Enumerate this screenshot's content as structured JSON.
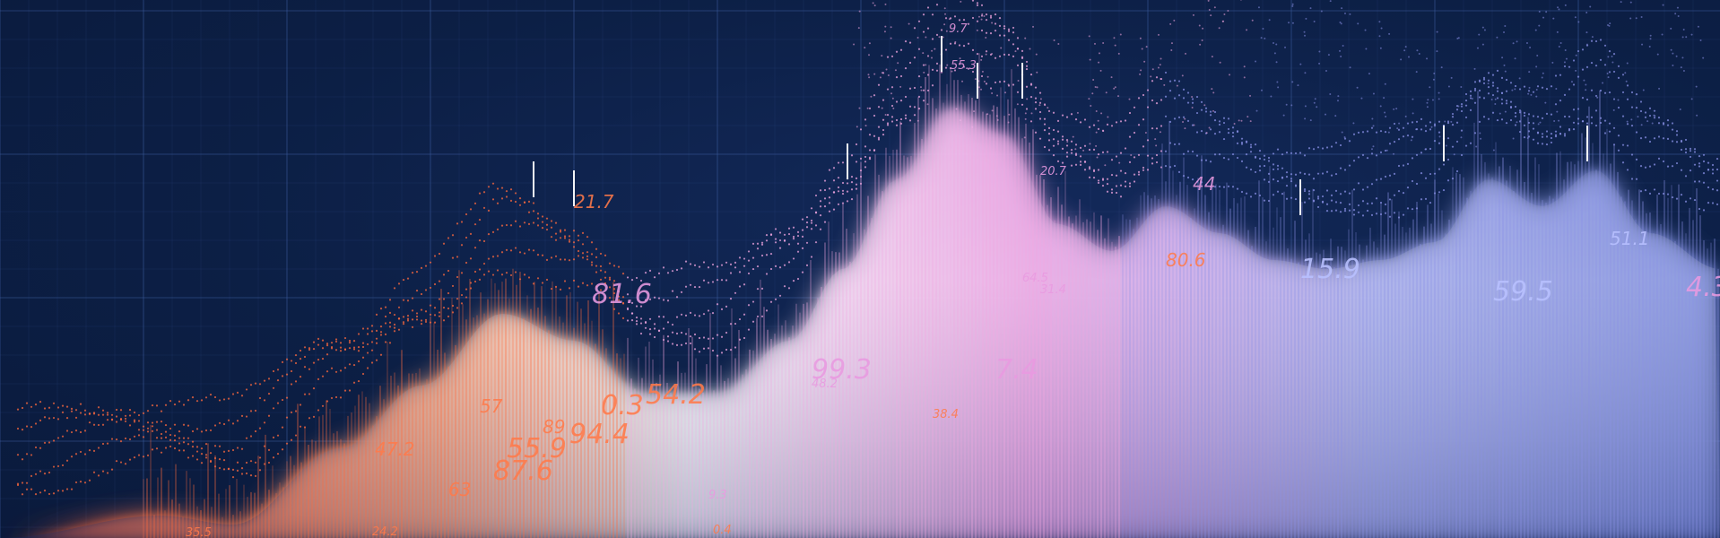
{
  "scene": {
    "colors": {
      "background": "#0c1f45",
      "grid": "#3a5a9a",
      "warm": "#ff6a3d",
      "mid": "#f2a6e0",
      "cool": "#8a90e6",
      "highlight": "#ffffff"
    },
    "labels": [
      {
        "text": "81.6",
        "size": "large",
        "tone": "mid"
      },
      {
        "text": "0.3",
        "size": "large",
        "tone": "warm"
      },
      {
        "text": "54.2",
        "size": "large",
        "tone": "warm"
      },
      {
        "text": "94.4",
        "size": "large",
        "tone": "warm"
      },
      {
        "text": "55.9",
        "size": "large",
        "tone": "warm"
      },
      {
        "text": "87.6",
        "size": "large",
        "tone": "warm"
      },
      {
        "text": "89",
        "size": "medium",
        "tone": "warm"
      },
      {
        "text": "63",
        "size": "medium",
        "tone": "warm"
      },
      {
        "text": "47.2",
        "size": "medium",
        "tone": "warm"
      },
      {
        "text": "57",
        "size": "medium",
        "tone": "warm"
      },
      {
        "text": "21.7",
        "size": "medium",
        "tone": "warm"
      },
      {
        "text": "99.3",
        "size": "large",
        "tone": "mid"
      },
      {
        "text": "7.4",
        "size": "large",
        "tone": "mid"
      },
      {
        "text": "38.4",
        "size": "small",
        "tone": "warm"
      },
      {
        "text": "48.2",
        "size": "small",
        "tone": "mid"
      },
      {
        "text": "55.3",
        "size": "small",
        "tone": "mid"
      },
      {
        "text": "9.7",
        "size": "small",
        "tone": "mid"
      },
      {
        "text": "80.6",
        "size": "medium",
        "tone": "warm"
      },
      {
        "text": "15.9",
        "size": "large",
        "tone": "cool"
      },
      {
        "text": "59.5",
        "size": "large",
        "tone": "cool"
      },
      {
        "text": "51.1",
        "size": "medium",
        "tone": "cool"
      },
      {
        "text": "44",
        "size": "medium",
        "tone": "mid"
      },
      {
        "text": "4.3",
        "size": "large",
        "tone": "mid"
      },
      {
        "text": "9.3",
        "size": "small",
        "tone": "mid"
      },
      {
        "text": "0.4",
        "size": "small",
        "tone": "warm"
      },
      {
        "text": "31.4",
        "size": "small",
        "tone": "mid"
      },
      {
        "text": "64.5",
        "size": "small",
        "tone": "mid"
      },
      {
        "text": "20.7",
        "size": "small",
        "tone": "mid"
      },
      {
        "text": "35.5",
        "size": "small",
        "tone": "warm"
      },
      {
        "text": "24.2",
        "size": "small",
        "tone": "warm"
      }
    ]
  }
}
